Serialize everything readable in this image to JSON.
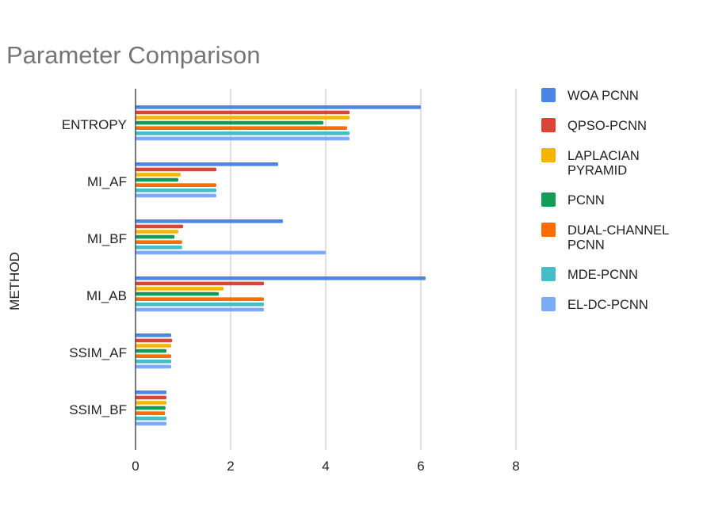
{
  "chart_data": {
    "type": "bar",
    "orientation": "horizontal",
    "title": "Parameter Comparison",
    "ylabel": "METHOD",
    "xlabel": "",
    "xlim": [
      0,
      8
    ],
    "xticks": [
      0,
      2,
      4,
      6,
      8
    ],
    "grid": true,
    "legend_position": "right",
    "categories": [
      "ENTROPY",
      "MI_AF",
      "MI_BF",
      "MI_AB",
      "SSIM_AF",
      "SSIM_BF"
    ],
    "series": [
      {
        "name": "WOA PCNN",
        "color": "#4a86e8",
        "legend_lines": [
          "WOA PCNN"
        ],
        "values": [
          6.0,
          3.0,
          3.1,
          6.1,
          0.75,
          0.65
        ]
      },
      {
        "name": "QPSO-PCNN",
        "color": "#db4437",
        "legend_lines": [
          "QPSO-PCNN"
        ],
        "values": [
          4.5,
          1.7,
          1.0,
          2.7,
          0.77,
          0.65
        ]
      },
      {
        "name": "LAPLACIAN PYRAMID",
        "color": "#f4b400",
        "legend_lines": [
          "LAPLACIAN",
          "PYRAMID"
        ],
        "values": [
          4.5,
          0.95,
          0.9,
          1.85,
          0.75,
          0.65
        ]
      },
      {
        "name": "PCNN",
        "color": "#0f9d58",
        "legend_lines": [
          "PCNN"
        ],
        "values": [
          3.95,
          0.9,
          0.82,
          1.75,
          0.65,
          0.63
        ]
      },
      {
        "name": "DUAL-CHANNEL PCNN",
        "color": "#ff6d01",
        "legend_lines": [
          "DUAL-CHANNEL",
          "PCNN"
        ],
        "values": [
          4.45,
          1.7,
          0.98,
          2.7,
          0.75,
          0.62
        ]
      },
      {
        "name": "MDE-PCNN",
        "color": "#46bdc6",
        "legend_lines": [
          "MDE-PCNN"
        ],
        "values": [
          4.5,
          1.7,
          0.98,
          2.7,
          0.75,
          0.65
        ]
      },
      {
        "name": "EL-DC-PCNN",
        "color": "#7baaf7",
        "legend_lines": [
          "EL-DC-PCNN"
        ],
        "values": [
          4.5,
          1.7,
          4.0,
          2.7,
          0.75,
          0.65
        ]
      }
    ]
  }
}
